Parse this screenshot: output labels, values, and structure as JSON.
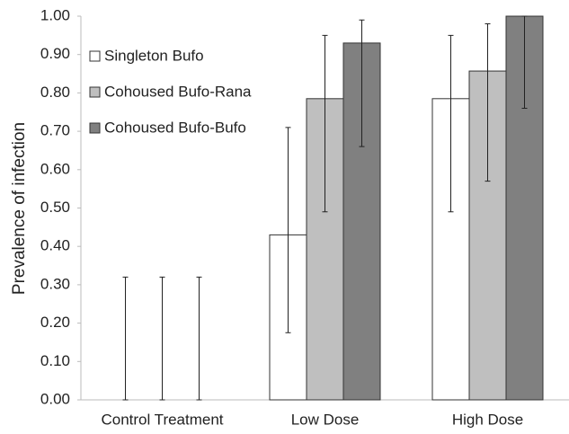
{
  "chart_data": {
    "type": "bar",
    "y_label": "Prevalence of infection",
    "categories": [
      "Control Treatment",
      "Low Dose",
      "High Dose"
    ],
    "series": [
      {
        "name": "Singleton Bufo",
        "color": "#ffffff",
        "values": [
          0,
          0.43,
          0.785
        ],
        "ci_low": [
          0,
          0.175,
          0.49
        ],
        "ci_high": [
          0.32,
          0.71,
          0.95
        ]
      },
      {
        "name": "Cohoused Bufo-Rana",
        "color": "#bfbfbf",
        "values": [
          0,
          0.785,
          0.857
        ],
        "ci_low": [
          0,
          0.49,
          0.57
        ],
        "ci_high": [
          0.32,
          0.95,
          0.98
        ]
      },
      {
        "name": "Cohoused Bufo-Bufo",
        "color": "#808080",
        "values": [
          0,
          0.93,
          1.0
        ],
        "ci_low": [
          0,
          0.66,
          0.76
        ],
        "ci_high": [
          0.32,
          0.99,
          1.0
        ]
      }
    ],
    "ylim": [
      0,
      1
    ],
    "yticks": [
      {
        "value": 0,
        "label": "0.00"
      },
      {
        "value": 0.1,
        "label": "0.10"
      },
      {
        "value": 0.2,
        "label": "0.20"
      },
      {
        "value": 0.3,
        "label": "0.30"
      },
      {
        "value": 0.4,
        "label": "0.40"
      },
      {
        "value": 0.5,
        "label": "0.50"
      },
      {
        "value": 0.6,
        "label": "0.60"
      },
      {
        "value": 0.7,
        "label": "0.70"
      },
      {
        "value": 0.8,
        "label": "0.80"
      },
      {
        "value": 0.9,
        "label": "0.90"
      },
      {
        "value": 1,
        "label": "1.00"
      }
    ],
    "legend": "top-left",
    "grid": false
  }
}
